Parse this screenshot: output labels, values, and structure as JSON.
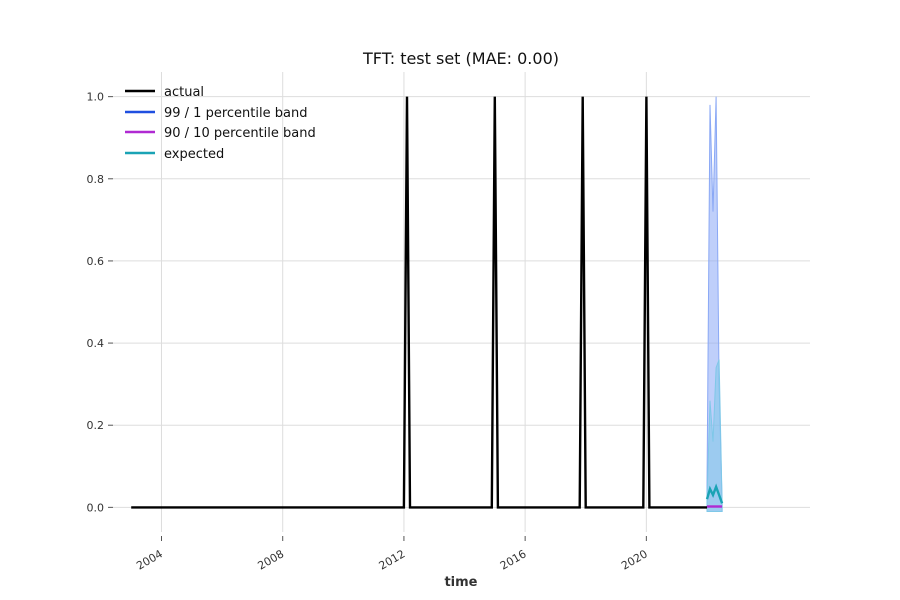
{
  "chart_data": {
    "type": "line",
    "title": "TFT: test set (MAE: 0.00)",
    "xlabel": "time",
    "ylabel": "",
    "xlim": [
      2002.4,
      2025.4
    ],
    "ylim": [
      -0.06,
      1.06
    ],
    "x_ticks": [
      2004,
      2008,
      2012,
      2016,
      2020
    ],
    "x_tick_labels": [
      "2004",
      "2008",
      "2012",
      "2016",
      "2020"
    ],
    "y_ticks": [
      0.0,
      0.2,
      0.4,
      0.6,
      0.8,
      1.0
    ],
    "y_tick_labels": [
      "0.0",
      "0.2",
      "0.4",
      "0.6",
      "0.8",
      "1.0"
    ],
    "grid": true,
    "legend_position": "top-left",
    "legend": [
      {
        "key": "actual",
        "label": "actual",
        "color": "#000000"
      },
      {
        "key": "band99",
        "label": "99 / 1 percentile band",
        "color": "#1f4fe0"
      },
      {
        "key": "band90",
        "label": "90 / 10 percentile band",
        "color": "#b02ad2"
      },
      {
        "key": "expected",
        "label": "expected",
        "color": "#1aa3b5"
      }
    ],
    "series": [
      {
        "name": "actual",
        "color": "#000000",
        "x": [
          2003.0,
          2012.0,
          2012.1,
          2012.2,
          2014.9,
          2015.0,
          2015.1,
          2017.8,
          2017.9,
          2018.0,
          2019.9,
          2020.0,
          2020.1,
          2022.0
        ],
        "y": [
          0,
          0,
          1,
          0,
          0,
          1,
          0,
          0,
          1,
          0,
          0,
          1,
          0,
          0
        ]
      },
      {
        "name": "expected",
        "color": "#1aa3b5",
        "x": [
          2022.0,
          2022.1,
          2022.2,
          2022.3,
          2022.4,
          2022.5
        ],
        "y": [
          0.02,
          0.045,
          0.03,
          0.05,
          0.03,
          0.01
        ]
      },
      {
        "name": "90 / 10 percentile band",
        "color": "#b02ad2",
        "x": [
          2022.0,
          2022.5
        ],
        "y": [
          0.002,
          0.002
        ]
      }
    ],
    "bands": [
      {
        "name": "99 / 1 percentile band",
        "color": "#8aa8f5",
        "x": [
          2022.0,
          2022.1,
          2022.2,
          2022.3,
          2022.4,
          2022.5
        ],
        "upper": [
          0.05,
          0.98,
          0.72,
          1.0,
          0.3,
          0.01
        ],
        "lower": [
          -0.01,
          -0.01,
          -0.01,
          -0.01,
          -0.01,
          -0.01
        ]
      },
      {
        "name": "expected-range",
        "color": "#7fc8e8",
        "x": [
          2022.0,
          2022.1,
          2022.2,
          2022.3,
          2022.4,
          2022.5
        ],
        "upper": [
          0.02,
          0.26,
          0.16,
          0.34,
          0.36,
          0.01
        ],
        "lower": [
          -0.01,
          -0.01,
          -0.01,
          -0.01,
          -0.01,
          -0.01
        ]
      }
    ]
  }
}
